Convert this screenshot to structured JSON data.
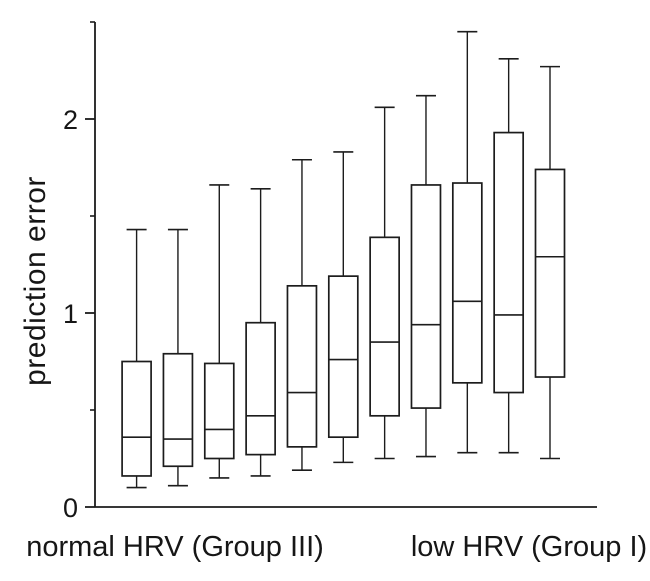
{
  "chart_data": {
    "type": "box",
    "title": "",
    "ylabel": "prediction error",
    "xlabel": "",
    "ylim": [
      0,
      2.5
    ],
    "yticks_major": [
      0,
      1,
      2
    ],
    "yticks_minor": [
      0.5,
      1.5,
      2.5
    ],
    "ytick_labels": [
      "0",
      "1",
      "2"
    ],
    "grid": false,
    "legend": null,
    "n_boxes": 11,
    "boxes": [
      {
        "min": 0.1,
        "q1": 0.16,
        "median": 0.36,
        "q3": 0.75,
        "max": 1.43
      },
      {
        "min": 0.11,
        "q1": 0.21,
        "median": 0.35,
        "q3": 0.79,
        "max": 1.43
      },
      {
        "min": 0.15,
        "q1": 0.25,
        "median": 0.4,
        "q3": 0.74,
        "max": 1.66
      },
      {
        "min": 0.16,
        "q1": 0.27,
        "median": 0.47,
        "q3": 0.95,
        "max": 1.64
      },
      {
        "min": 0.19,
        "q1": 0.31,
        "median": 0.59,
        "q3": 1.14,
        "max": 1.79
      },
      {
        "min": 0.23,
        "q1": 0.36,
        "median": 0.76,
        "q3": 1.19,
        "max": 1.83
      },
      {
        "min": 0.25,
        "q1": 0.47,
        "median": 0.85,
        "q3": 1.39,
        "max": 2.06
      },
      {
        "min": 0.26,
        "q1": 0.51,
        "median": 0.94,
        "q3": 1.66,
        "max": 2.12
      },
      {
        "min": 0.28,
        "q1": 0.64,
        "median": 1.06,
        "q3": 1.67,
        "max": 2.45
      },
      {
        "min": 0.28,
        "q1": 0.59,
        "median": 0.99,
        "q3": 1.93,
        "max": 2.31
      },
      {
        "min": 0.25,
        "q1": 0.67,
        "median": 1.29,
        "q3": 1.74,
        "max": 2.27
      }
    ],
    "group_labels": [
      {
        "label": "normal HRV (Group III)",
        "side": "left"
      },
      {
        "label": "low HRV (Group I)",
        "side": "right"
      }
    ]
  },
  "colors": {
    "line": "#1c1c1c",
    "box_fill": "#ffffff",
    "background": "#ffffff"
  }
}
